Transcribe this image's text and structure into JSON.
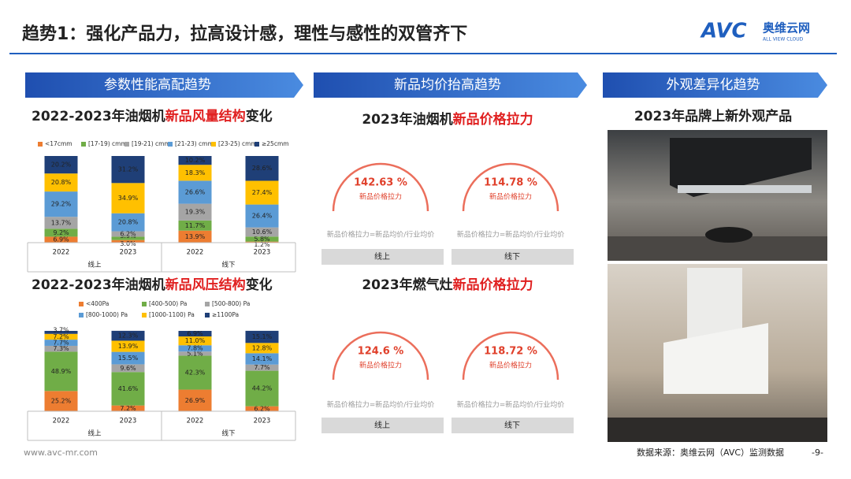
{
  "header": {
    "title": "趋势1：强化产品力，拉高设计感，理性与感性的双管齐下",
    "logo": "AVC",
    "brand": "奥维云网",
    "brand_en": "ALL VIEW CLOUD"
  },
  "sections": [
    "参数性能高配趋势",
    "新品均价抬高趋势",
    "外观差异化趋势"
  ],
  "photo_title": "2023年品牌上新外观产品",
  "chart_data": [
    {
      "type": "stacked_bar",
      "title": [
        "2022-2023年油烟机",
        "新品风量结构",
        "变化"
      ],
      "categories": [
        "2022",
        "2023",
        "2022",
        "2023"
      ],
      "groups": [
        "线上",
        "线下"
      ],
      "ylim": [
        0,
        100
      ],
      "series": [
        {
          "name": "<17cmm",
          "color": "#ed7d31",
          "values": [
            6.9,
            3.0,
            13.9,
            1.2
          ],
          "value_labels": [
            "6.9%",
            "3.0%",
            "13.9%",
            "1.2%"
          ]
        },
        {
          "name": "[17-19) cmm",
          "color": "#70ad47",
          "values": [
            9.2,
            3.9,
            11.7,
            5.8
          ],
          "value_labels": [
            "9.2%",
            "3.9%",
            "11.7%",
            "5.8%"
          ]
        },
        {
          "name": "[19-21) cmm",
          "color": "#a5a5a5",
          "values": [
            13.7,
            6.2,
            19.3,
            10.6
          ],
          "value_labels": [
            "13.7%",
            "6.2%",
            "19.3%",
            "10.6%"
          ]
        },
        {
          "name": "[21-23) cmm",
          "color": "#5b9bd5",
          "values": [
            29.2,
            20.8,
            26.6,
            26.4
          ],
          "value_labels": [
            "29.2%",
            "20.8%",
            "26.6%",
            "26.4%"
          ]
        },
        {
          "name": "[23-25) cmm",
          "color": "#ffc000",
          "values": [
            20.8,
            34.9,
            18.3,
            27.4
          ],
          "value_labels": [
            "20.8%",
            "34.9%",
            "18.3%",
            "27.4%"
          ]
        },
        {
          "name": "≥25cmm",
          "color": "#1f3f77",
          "values": [
            20.2,
            31.2,
            10.2,
            28.6
          ],
          "value_labels": [
            "20.2%",
            "31.2%",
            "10.2%",
            "28.6%"
          ]
        }
      ]
    },
    {
      "type": "stacked_bar",
      "title": [
        "2022-2023年油烟机",
        "新品风压结构",
        "变化"
      ],
      "categories": [
        "2022",
        "2023",
        "2022",
        "2023"
      ],
      "groups": [
        "线上",
        "线下"
      ],
      "ylim": [
        0,
        100
      ],
      "series": [
        {
          "name": "<400Pa",
          "color": "#ed7d31",
          "values": [
            25.2,
            7.2,
            26.9,
            6.2
          ],
          "value_labels": [
            "25.2%",
            "7.2%",
            "26.9%",
            "6.2%"
          ]
        },
        {
          "name": "[400-500) Pa",
          "color": "#70ad47",
          "values": [
            48.9,
            41.6,
            42.3,
            44.2
          ],
          "value_labels": [
            "48.9%",
            "41.6%",
            "42.3%",
            "44.2%"
          ]
        },
        {
          "name": "[500-800) Pa",
          "color": "#a5a5a5",
          "values": [
            7.3,
            9.6,
            5.1,
            7.7
          ],
          "value_labels": [
            "7.3%",
            "9.6%",
            "5.1%",
            "7.7%"
          ]
        },
        {
          "name": "[800-1000) Pa",
          "color": "#5b9bd5",
          "values": [
            7.7,
            15.5,
            7.8,
            14.1
          ],
          "value_labels": [
            "7.7%",
            "15.5%",
            "7.8%",
            "14.1%"
          ]
        },
        {
          "name": "[1000-1100) Pa",
          "color": "#ffc000",
          "values": [
            7.2,
            13.9,
            11.0,
            12.8
          ],
          "value_labels": [
            "7.2%",
            "13.9%",
            "11.0%",
            "12.8%"
          ]
        },
        {
          "name": "≥1100Pa",
          "color": "#1f3f77",
          "values": [
            3.7,
            12.3,
            6.9,
            15.1
          ],
          "value_labels": [
            "3.7%",
            "12.3%",
            "6.9%",
            "15.1%"
          ]
        }
      ]
    },
    {
      "type": "gauge",
      "title": [
        "2023年油烟机",
        "新品价格拉力"
      ],
      "categories": [
        "线上",
        "线下"
      ],
      "values": [
        142.63,
        114.78
      ],
      "value_labels": [
        "142.63 %",
        "114.78 %"
      ],
      "metric": "新品价格拉力",
      "note": "新品价格拉力=新品均价/行业均价",
      "color": "#e8553e"
    },
    {
      "type": "gauge",
      "title": [
        "2023年燃气灶",
        "新品价格拉力"
      ],
      "categories": [
        "线上",
        "线下"
      ],
      "values": [
        124.6,
        118.72
      ],
      "value_labels": [
        "124.6 %",
        "118.72 %"
      ],
      "metric": "新品价格拉力",
      "note": "新品价格拉力=新品均价/行业均价",
      "color": "#e8553e"
    }
  ],
  "footer": {
    "url": "www.avc-mr.com",
    "source": "数据来源：奥维云网（AVC）监测数据",
    "page": "-9-"
  }
}
